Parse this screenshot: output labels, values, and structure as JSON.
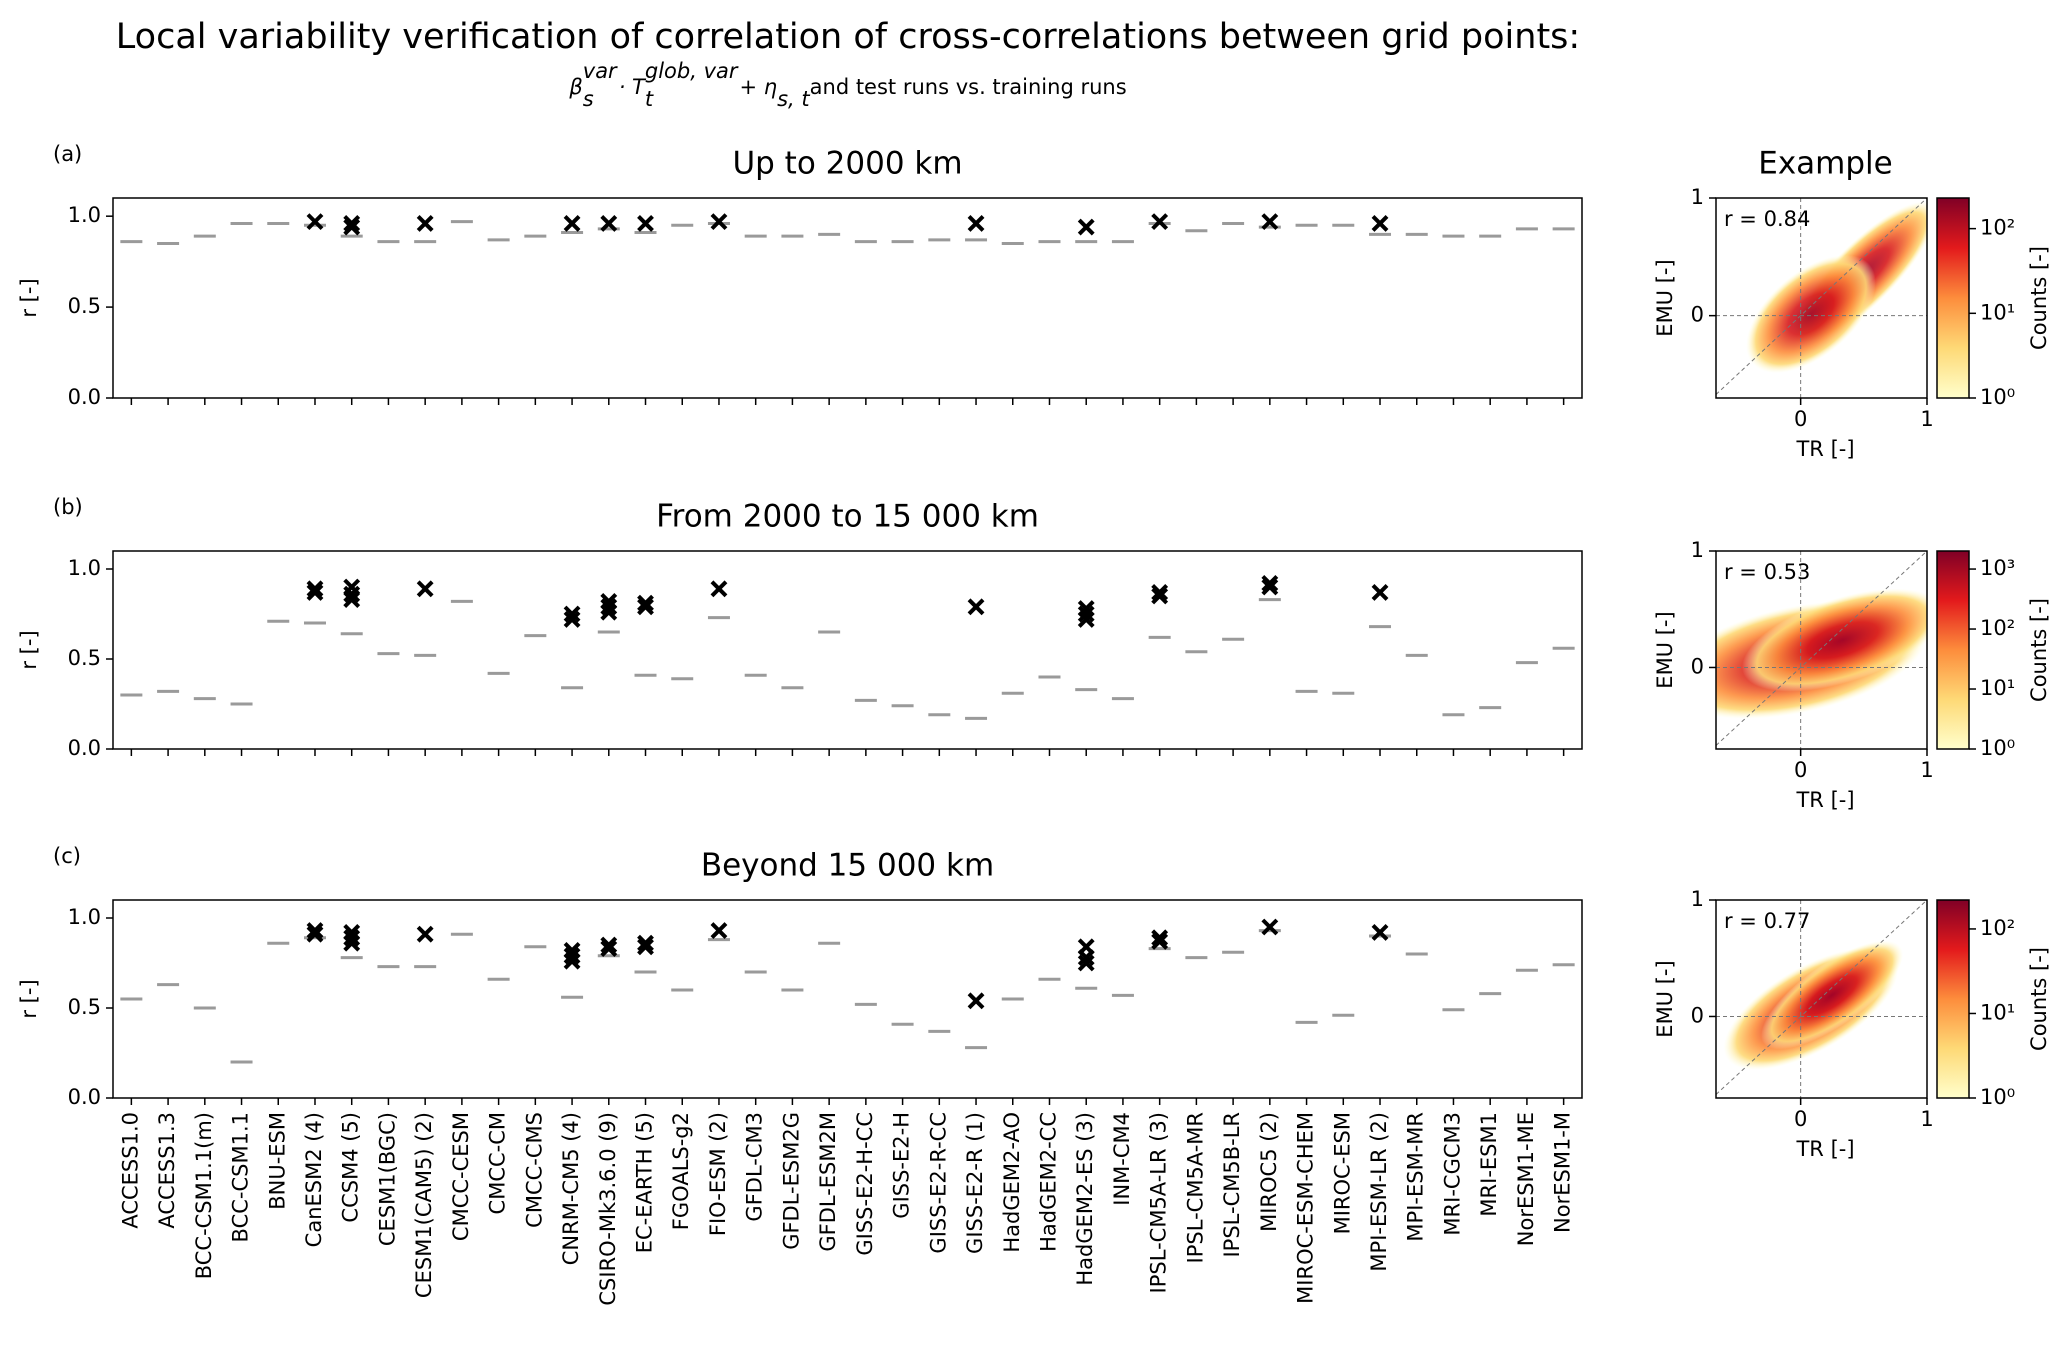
{
  "title": "Local variability verification of correlation of cross-correlations between grid points:",
  "subtitle_parts": [
    "β",
    "s",
    "var",
    " · T",
    "t",
    "glob, var",
    " + η",
    "s, t",
    " and test runs vs. training runs"
  ],
  "chart_data": [
    {
      "type": "box",
      "panel_label": "(a)",
      "title": "Up to 2000 km",
      "ylabel": "r [-]",
      "ylim": [
        0,
        1.1
      ],
      "yticks": [
        {
          "value": 0,
          "label": "0.0"
        },
        0.5,
        {
          "value": 1,
          "label": "1.0"
        }
      ],
      "color": "#9a9a9a",
      "test_color": "#000000",
      "values": [
        0.86,
        0.85,
        0.89,
        0.96,
        0.96,
        0.95,
        0.89,
        0.86,
        0.86,
        0.97,
        0.87,
        0.89,
        0.91,
        0.93,
        0.91,
        0.95,
        0.96,
        0.89,
        0.89,
        0.9,
        0.86,
        0.86,
        0.87,
        0.87,
        0.85,
        0.86,
        0.86,
        0.86,
        0.96,
        0.92,
        0.96,
        0.94,
        0.95,
        0.95,
        0.9,
        0.9,
        0.89,
        0.89,
        0.93,
        0.93
      ],
      "test_values": [
        null,
        null,
        null,
        null,
        null,
        [
          0.97
        ],
        [
          0.96,
          0.94
        ],
        null,
        [
          0.96
        ],
        null,
        null,
        null,
        [
          0.96
        ],
        [
          0.96
        ],
        [
          0.96
        ],
        null,
        [
          0.97
        ],
        null,
        null,
        null,
        null,
        null,
        null,
        [
          0.96
        ],
        null,
        null,
        [
          0.94
        ],
        null,
        [
          0.97
        ],
        null,
        null,
        [
          0.97
        ],
        null,
        null,
        [
          0.96
        ],
        null,
        null,
        null,
        null,
        null
      ]
    },
    {
      "type": "box",
      "panel_label": "(b)",
      "title": "From 2000 to 15 000 km",
      "ylabel": "r [-]",
      "ylim": [
        0,
        1.1
      ],
      "yticks": [
        {
          "value": 0,
          "label": "0.0"
        },
        0.5,
        {
          "value": 1,
          "label": "1.0"
        }
      ],
      "color": "#9a9a9a",
      "test_color": "#000000",
      "values": [
        0.3,
        0.32,
        0.28,
        0.25,
        0.71,
        0.7,
        0.64,
        0.53,
        0.52,
        0.82,
        0.42,
        0.63,
        0.34,
        0.65,
        0.41,
        0.39,
        0.73,
        0.41,
        0.34,
        0.65,
        0.27,
        0.24,
        0.19,
        0.17,
        0.31,
        0.4,
        0.33,
        0.28,
        0.62,
        0.54,
        0.61,
        0.83,
        0.32,
        0.31,
        0.68,
        0.52,
        0.19,
        0.23,
        0.48,
        0.56
      ],
      "test_values": [
        null,
        null,
        null,
        null,
        null,
        [
          0.89,
          0.87
        ],
        [
          0.9,
          0.86,
          0.83
        ],
        null,
        [
          0.89
        ],
        null,
        null,
        null,
        [
          0.75,
          0.72
        ],
        [
          0.82,
          0.79,
          0.76
        ],
        [
          0.81,
          0.79
        ],
        null,
        [
          0.89
        ],
        null,
        null,
        null,
        null,
        null,
        null,
        [
          0.79
        ],
        null,
        null,
        [
          0.78,
          0.75,
          0.72
        ],
        null,
        [
          0.87,
          0.85
        ],
        null,
        null,
        [
          0.92,
          0.9
        ],
        null,
        null,
        [
          0.87
        ],
        null,
        null,
        null,
        null,
        null
      ]
    },
    {
      "type": "box",
      "panel_label": "(c)",
      "title": "Beyond 15 000 km",
      "ylabel": "r [-]",
      "ylim": [
        0,
        1.1
      ],
      "yticks": [
        {
          "value": 0,
          "label": "0.0"
        },
        0.5,
        {
          "value": 1,
          "label": "1.0"
        }
      ],
      "color": "#9a9a9a",
      "test_color": "#000000",
      "categories": [
        "ACCESS1.0",
        "ACCESS1.3",
        "BCC-CSM1.1(m)",
        "BCC-CSM1.1",
        "BNU-ESM",
        "CanESM2 (4)",
        "CCSM4 (5)",
        "CESM1(BGC)",
        "CESM1(CAM5) (2)",
        "CMCC-CESM",
        "CMCC-CM",
        "CMCC-CMS",
        "CNRM-CM5 (4)",
        "CSIRO-Mk3.6.0 (9)",
        "EC-EARTH (5)",
        "FGOALS-g2",
        "FIO-ESM (2)",
        "GFDL-CM3",
        "GFDL-ESM2G",
        "GFDL-ESM2M",
        "GISS-E2-H-CC",
        "GISS-E2-H",
        "GISS-E2-R-CC",
        "GISS-E2-R (1)",
        "HadGEM2-AO",
        "HadGEM2-CC",
        "HadGEM2-ES (3)",
        "INM-CM4",
        "IPSL-CM5A-LR (3)",
        "IPSL-CM5A-MR",
        "IPSL-CM5B-LR",
        "MIROC5 (2)",
        "MIROC-ESM-CHEM",
        "MIROC-ESM",
        "MPI-ESM-LR (2)",
        "MPI-ESM-MR",
        "MRI-CGCM3",
        "MRI-ESM1",
        "NorESM1-ME",
        "NorESM1-M"
      ],
      "values": [
        0.55,
        0.63,
        0.5,
        0.2,
        0.86,
        0.89,
        0.78,
        0.73,
        0.73,
        0.91,
        0.66,
        0.84,
        0.56,
        0.79,
        0.7,
        0.6,
        0.88,
        0.7,
        0.6,
        0.86,
        0.52,
        0.41,
        0.37,
        0.28,
        0.55,
        0.66,
        0.61,
        0.57,
        0.83,
        0.78,
        0.81,
        0.93,
        0.42,
        0.46,
        0.9,
        0.8,
        0.49,
        0.58,
        0.71,
        0.74
      ],
      "test_values": [
        null,
        null,
        null,
        null,
        null,
        [
          0.93,
          0.91
        ],
        [
          0.92,
          0.89,
          0.86
        ],
        null,
        [
          0.91
        ],
        null,
        null,
        null,
        [
          0.82,
          0.79,
          0.76
        ],
        [
          0.85,
          0.83
        ],
        [
          0.86,
          0.84
        ],
        null,
        [
          0.93
        ],
        null,
        null,
        null,
        null,
        null,
        null,
        [
          0.54
        ],
        null,
        null,
        [
          0.84,
          0.78,
          0.75
        ],
        null,
        [
          0.89,
          0.87
        ],
        null,
        null,
        [
          0.95
        ],
        null,
        null,
        [
          0.92
        ],
        null,
        null,
        null,
        null,
        null
      ]
    },
    {
      "type": "hexbin",
      "title": "Example",
      "r_label": "r = 0.84",
      "xlabel": "TR [-]",
      "ylabel": "EMU [-]",
      "xlim": [
        -0.67,
        1
      ],
      "ylim": [
        -0.7,
        1
      ],
      "xticks": [
        0,
        1
      ],
      "yticks": [
        0,
        1
      ],
      "colorbar_label": "Counts [-]",
      "colorbar_log": true,
      "colorbar_lim": [
        1,
        230
      ],
      "colorbar_ticks": [
        {
          "value": 1,
          "label": "10⁰"
        },
        {
          "value": 10,
          "label": "10¹"
        },
        {
          "value": 100,
          "label": "10²"
        }
      ]
    },
    {
      "type": "hexbin",
      "r_label": "r = 0.53",
      "xlabel": "TR [-]",
      "ylabel": "EMU [-]",
      "xlim": [
        -0.67,
        1
      ],
      "ylim": [
        -0.7,
        1
      ],
      "xticks": [
        0,
        1
      ],
      "yticks": [
        0,
        1
      ],
      "colorbar_label": "Counts [-]",
      "colorbar_log": true,
      "colorbar_lim": [
        1,
        2000
      ],
      "colorbar_ticks": [
        {
          "value": 1,
          "label": "10⁰"
        },
        {
          "value": 10,
          "label": "10¹"
        },
        {
          "value": 100,
          "label": "10²"
        },
        {
          "value": 1000,
          "label": "10³"
        }
      ]
    },
    {
      "type": "hexbin",
      "r_label": "r = 0.77",
      "xlabel": "TR [-]",
      "ylabel": "EMU [-]",
      "xlim": [
        -0.67,
        1
      ],
      "ylim": [
        -0.7,
        1
      ],
      "xticks": [
        0,
        1
      ],
      "yticks": [
        0,
        1
      ],
      "colorbar_label": "Counts [-]",
      "colorbar_log": true,
      "colorbar_lim": [
        1,
        220
      ],
      "colorbar_ticks": [
        {
          "value": 1,
          "label": "10⁰"
        },
        {
          "value": 10,
          "label": "10¹"
        },
        {
          "value": 100,
          "label": "10²"
        }
      ]
    }
  ]
}
